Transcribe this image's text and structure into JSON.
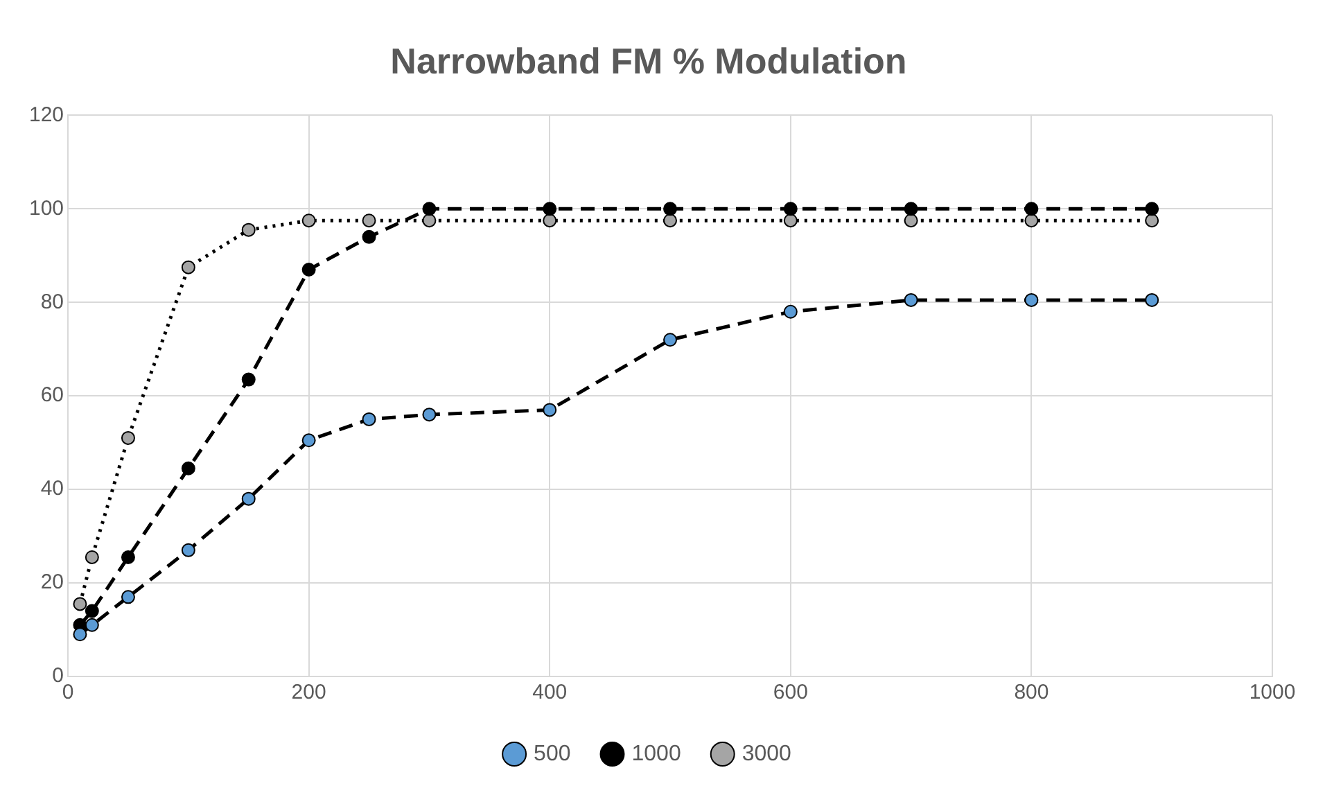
{
  "chart_data": {
    "type": "line",
    "title": "Narrowband FM % Modulation",
    "x": [
      10,
      20,
      50,
      100,
      150,
      200,
      250,
      300,
      400,
      500,
      600,
      700,
      800,
      900
    ],
    "series": [
      {
        "name": "500",
        "color": "#5b9bd5",
        "line_style": "dashed",
        "values": [
          9,
          11,
          17,
          27,
          38,
          50.5,
          55,
          56,
          57,
          72,
          78,
          80.5,
          80.5,
          80.5
        ]
      },
      {
        "name": "1000",
        "color": "#000000",
        "line_style": "dashed",
        "values": [
          11,
          14,
          25.5,
          44.5,
          63.5,
          87,
          94,
          100,
          100,
          100,
          100,
          100,
          100,
          100
        ]
      },
      {
        "name": "3000",
        "color": "#a5a5a5",
        "line_style": "dotted",
        "values": [
          15.5,
          25.5,
          51,
          87.5,
          95.5,
          97.5,
          97.5,
          97.5,
          97.5,
          97.5,
          97.5,
          97.5,
          97.5,
          97.5
        ]
      }
    ],
    "xlim": [
      0,
      1000
    ],
    "xticks": [
      0,
      200,
      400,
      600,
      800,
      1000
    ],
    "ylim": [
      0,
      120
    ],
    "yticks": [
      0,
      20,
      40,
      60,
      80,
      100,
      120
    ],
    "grid": true,
    "legend": "bottom",
    "marker": "circle"
  }
}
